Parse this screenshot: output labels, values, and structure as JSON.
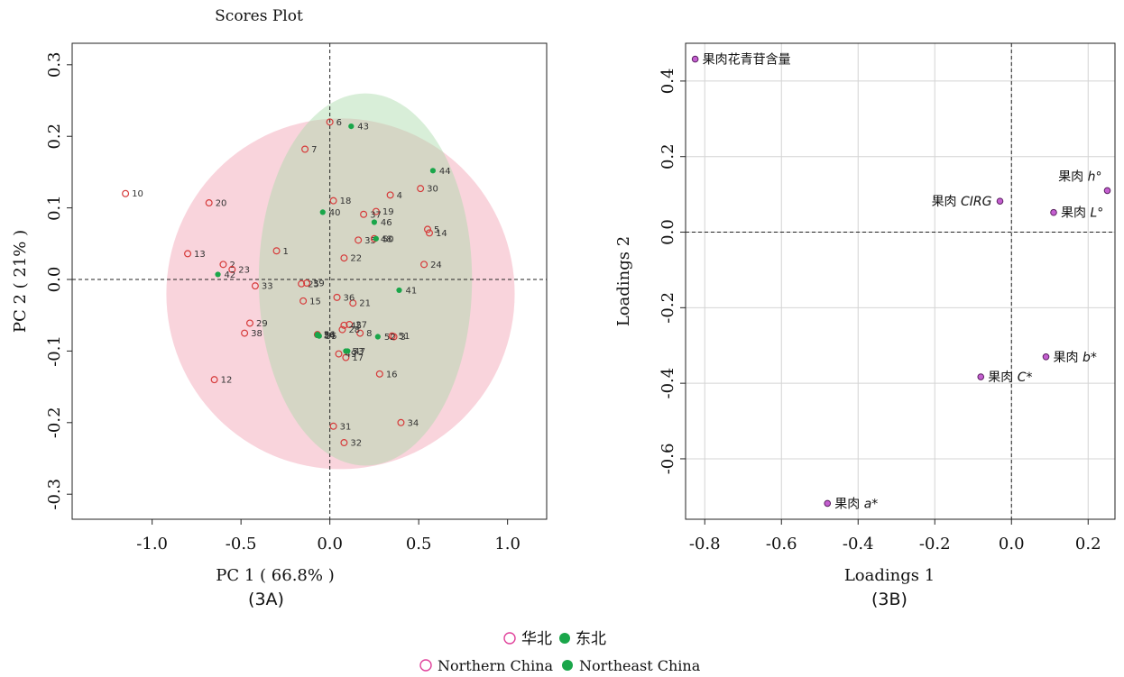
{
  "panel_a": {
    "title": "Scores Plot",
    "xlabel": "PC 1 ( 66.8% )",
    "ylabel": "PC 2 ( 21% )",
    "caption": "(3A)"
  },
  "panel_b": {
    "xlabel": "Loadings 1",
    "ylabel": "Loadings 2",
    "caption": "(3B)"
  },
  "legend": {
    "line1": [
      {
        "label": "华北",
        "marker": "open-circle",
        "color": "#e0409a"
      },
      {
        "label": "东北",
        "marker": "filled-circle",
        "color": "#1aa64a"
      }
    ],
    "line2": [
      {
        "label": "Northern China",
        "marker": "open-circle",
        "color": "#e0409a"
      },
      {
        "label": "Northeast China",
        "marker": "filled-circle",
        "color": "#1aa64a"
      }
    ]
  },
  "colors": {
    "north_marker": "#d63a3a",
    "northeast_marker": "#1aa64a",
    "north_ellipse": "#f4b0c0",
    "northeast_ellipse": "#a8d9a8",
    "loading_fill": "#c45fd0",
    "loading_stroke": "#5a2060"
  },
  "chart_data": [
    {
      "type": "scatter",
      "xlim": [
        -1.45,
        1.22
      ],
      "ylim": [
        -0.335,
        0.33
      ],
      "xticks": [
        -1.0,
        -0.5,
        0.0,
        0.5,
        1.0
      ],
      "xtick_labels": [
        "-1.0",
        "-0.5",
        "0.0",
        "0.5",
        "1.0"
      ],
      "yticks": [
        -0.3,
        -0.2,
        -0.1,
        0.0,
        0.1,
        0.2,
        0.3
      ],
      "ytick_labels": [
        "-0.3",
        "-0.2",
        "-0.1",
        "0.0",
        "0.1",
        "0.2",
        "0.3"
      ],
      "grid": false,
      "reference_lines": {
        "x": 0,
        "y": 0
      },
      "ellipses": [
        {
          "group": "north",
          "cx": 0.06,
          "cy": -0.02,
          "rx": 0.98,
          "ry": 0.245
        },
        {
          "group": "northeast",
          "cx": 0.2,
          "cy": 0.0,
          "rx": 0.6,
          "ry": 0.26
        }
      ],
      "series": [
        {
          "name": "华北",
          "marker": "open-circle",
          "points": [
            {
              "id": "1",
              "x": -0.3,
              "y": 0.04
            },
            {
              "id": "2",
              "x": -0.6,
              "y": 0.021
            },
            {
              "id": "3",
              "x": 0.36,
              "y": -0.08
            },
            {
              "id": "4",
              "x": 0.34,
              "y": 0.118
            },
            {
              "id": "5",
              "x": 0.55,
              "y": 0.07
            },
            {
              "id": "6",
              "x": 0.0,
              "y": 0.22
            },
            {
              "id": "7",
              "x": -0.14,
              "y": 0.182
            },
            {
              "id": "8",
              "x": 0.17,
              "y": -0.075
            },
            {
              "id": "10",
              "x": -1.15,
              "y": 0.12
            },
            {
              "id": "12",
              "x": -0.65,
              "y": -0.14
            },
            {
              "id": "13",
              "x": -0.8,
              "y": 0.036
            },
            {
              "id": "14",
              "x": 0.56,
              "y": 0.065
            },
            {
              "id": "15",
              "x": -0.15,
              "y": -0.03
            },
            {
              "id": "16",
              "x": 0.28,
              "y": -0.132
            },
            {
              "id": "17",
              "x": 0.09,
              "y": -0.109
            },
            {
              "id": "18",
              "x": 0.02,
              "y": 0.11
            },
            {
              "id": "19",
              "x": 0.26,
              "y": 0.095
            },
            {
              "id": "20",
              "x": -0.68,
              "y": 0.107
            },
            {
              "id": "21",
              "x": 0.13,
              "y": -0.033
            },
            {
              "id": "22",
              "x": 0.08,
              "y": 0.03
            },
            {
              "id": "23",
              "x": -0.55,
              "y": 0.014
            },
            {
              "id": "24",
              "x": 0.53,
              "y": 0.021
            },
            {
              "id": "25",
              "x": -0.16,
              "y": -0.006
            },
            {
              "id": "26",
              "x": -0.07,
              "y": -0.077
            },
            {
              "id": "27",
              "x": 0.11,
              "y": -0.063
            },
            {
              "id": "28",
              "x": 0.07,
              "y": -0.07
            },
            {
              "id": "29",
              "x": -0.45,
              "y": -0.061
            },
            {
              "id": "30",
              "x": 0.51,
              "y": 0.127
            },
            {
              "id": "31",
              "x": 0.02,
              "y": -0.205
            },
            {
              "id": "32",
              "x": 0.08,
              "y": -0.228
            },
            {
              "id": "33",
              "x": -0.42,
              "y": -0.009
            },
            {
              "id": "34",
              "x": 0.4,
              "y": -0.2
            },
            {
              "id": "35",
              "x": 0.16,
              "y": 0.055
            },
            {
              "id": "36",
              "x": 0.04,
              "y": -0.025
            },
            {
              "id": "37",
              "x": 0.19,
              "y": 0.091
            },
            {
              "id": "38",
              "x": -0.48,
              "y": -0.075
            },
            {
              "id": "39",
              "x": -0.13,
              "y": -0.005
            },
            {
              "id": "45",
              "x": 0.08,
              "y": -0.064
            },
            {
              "id": "48",
              "x": 0.25,
              "y": 0.057
            },
            {
              "id": "49",
              "x": 0.05,
              "y": -0.104
            },
            {
              "id": "51",
              "x": 0.35,
              "y": -0.079
            }
          ]
        },
        {
          "name": "东北",
          "marker": "filled-circle",
          "points": [
            {
              "id": "40",
              "x": -0.04,
              "y": 0.094
            },
            {
              "id": "41",
              "x": 0.39,
              "y": -0.015
            },
            {
              "id": "42",
              "x": -0.63,
              "y": 0.007
            },
            {
              "id": "43",
              "x": 0.12,
              "y": 0.214
            },
            {
              "id": "44",
              "x": 0.58,
              "y": 0.152
            },
            {
              "id": "46",
              "x": 0.25,
              "y": 0.08
            },
            {
              "id": "47",
              "x": 0.1,
              "y": -0.1
            },
            {
              "id": "50",
              "x": 0.26,
              "y": 0.057
            },
            {
              "id": "52",
              "x": 0.27,
              "y": -0.08
            },
            {
              "id": "53",
              "x": 0.09,
              "y": -0.1
            },
            {
              "id": "54",
              "x": -0.07,
              "y": -0.078
            },
            {
              "id": "55",
              "x": -0.06,
              "y": -0.079
            },
            {
              "id": "56",
              "x": -0.07,
              "y": -0.077
            }
          ]
        }
      ]
    },
    {
      "type": "scatter",
      "xlim": [
        -0.85,
        0.27
      ],
      "ylim": [
        -0.76,
        0.5
      ],
      "xticks": [
        -0.8,
        -0.6,
        -0.4,
        -0.2,
        0.0,
        0.2
      ],
      "xtick_labels": [
        "-0.8",
        "-0.6",
        "-0.4",
        "-0.2",
        "0.0",
        "0.2"
      ],
      "yticks": [
        -0.6,
        -0.4,
        -0.2,
        0.0,
        0.2,
        0.4
      ],
      "ytick_labels": [
        "-0.6",
        "-0.4",
        "-0.2",
        "0.0",
        "0.2",
        "0.4"
      ],
      "grid": true,
      "reference_lines": {
        "x": 0,
        "y": 0
      },
      "points": [
        {
          "label_cn": "果肉花青苷含量",
          "label_var": "",
          "x": -0.825,
          "y": 0.458,
          "label_side": "right"
        },
        {
          "label_cn": "果肉 ",
          "label_var": "h°",
          "x": 0.25,
          "y": 0.11,
          "label_side": "above-left"
        },
        {
          "label_cn": "果肉 ",
          "label_var": "CIRG",
          "x": -0.03,
          "y": 0.082,
          "label_side": "left"
        },
        {
          "label_cn": "果肉 ",
          "label_var": "L°",
          "x": 0.11,
          "y": 0.052,
          "label_side": "right"
        },
        {
          "label_cn": "果肉 ",
          "label_var": "b*",
          "x": 0.09,
          "y": -0.33,
          "label_side": "right"
        },
        {
          "label_cn": "果肉 ",
          "label_var": "C*",
          "x": -0.08,
          "y": -0.383,
          "label_side": "right"
        },
        {
          "label_cn": "果肉 ",
          "label_var": "a*",
          "x": -0.48,
          "y": -0.718,
          "label_side": "right"
        }
      ]
    }
  ]
}
